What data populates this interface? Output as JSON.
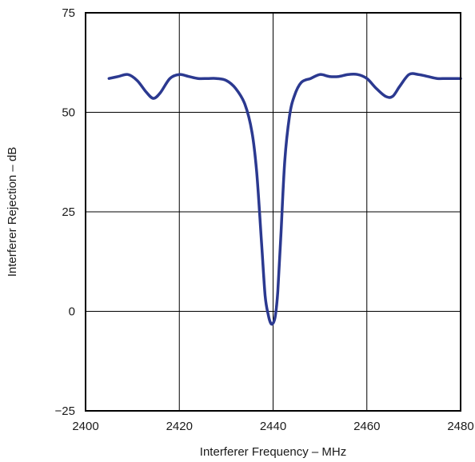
{
  "chart_data": {
    "type": "line",
    "title": "",
    "xlabel": "Interferer Frequency – MHz",
    "ylabel": "Interferer Rejection – dB",
    "xlim": [
      2400,
      2480
    ],
    "ylim": [
      -25,
      75
    ],
    "x_ticks": [
      2400,
      2420,
      2440,
      2460,
      2480
    ],
    "x_tick_labels": [
      "2400",
      "2420",
      "2440",
      "2460",
      "2480"
    ],
    "y_ticks": [
      -25,
      0,
      25,
      50,
      75
    ],
    "y_tick_labels": [
      "−25",
      "0",
      "25",
      "50",
      "75"
    ],
    "grid": true,
    "legend": "none",
    "series": [
      {
        "color": "#2b3990",
        "x": [
          2405,
          2407,
          2409,
          2411,
          2413,
          2414.5,
          2416,
          2418,
          2420,
          2422,
          2424,
          2426,
          2428,
          2430,
          2432,
          2434,
          2435.5,
          2436.5,
          2437.5,
          2438.3,
          2439,
          2439.5,
          2440,
          2440.5,
          2441,
          2441.7,
          2442.5,
          2443.5,
          2444.5,
          2446,
          2448,
          2450,
          2452,
          2454,
          2456,
          2458,
          2460,
          2462,
          2464,
          2465.5,
          2467,
          2469,
          2471,
          2473,
          2475,
          2477,
          2480
        ],
        "y": [
          58.5,
          59,
          59.5,
          58,
          55,
          53.5,
          55,
          58.5,
          59.5,
          59,
          58.5,
          58.5,
          58.5,
          58,
          56,
          52,
          45,
          35,
          18,
          4,
          -1,
          -3,
          -3,
          -1,
          5,
          20,
          38,
          49,
          54,
          57.5,
          58.5,
          59.5,
          59,
          59,
          59.5,
          59.5,
          58.5,
          56,
          54,
          54,
          56.5,
          59.5,
          59.5,
          59,
          58.5,
          58.5,
          58.5
        ]
      }
    ]
  }
}
